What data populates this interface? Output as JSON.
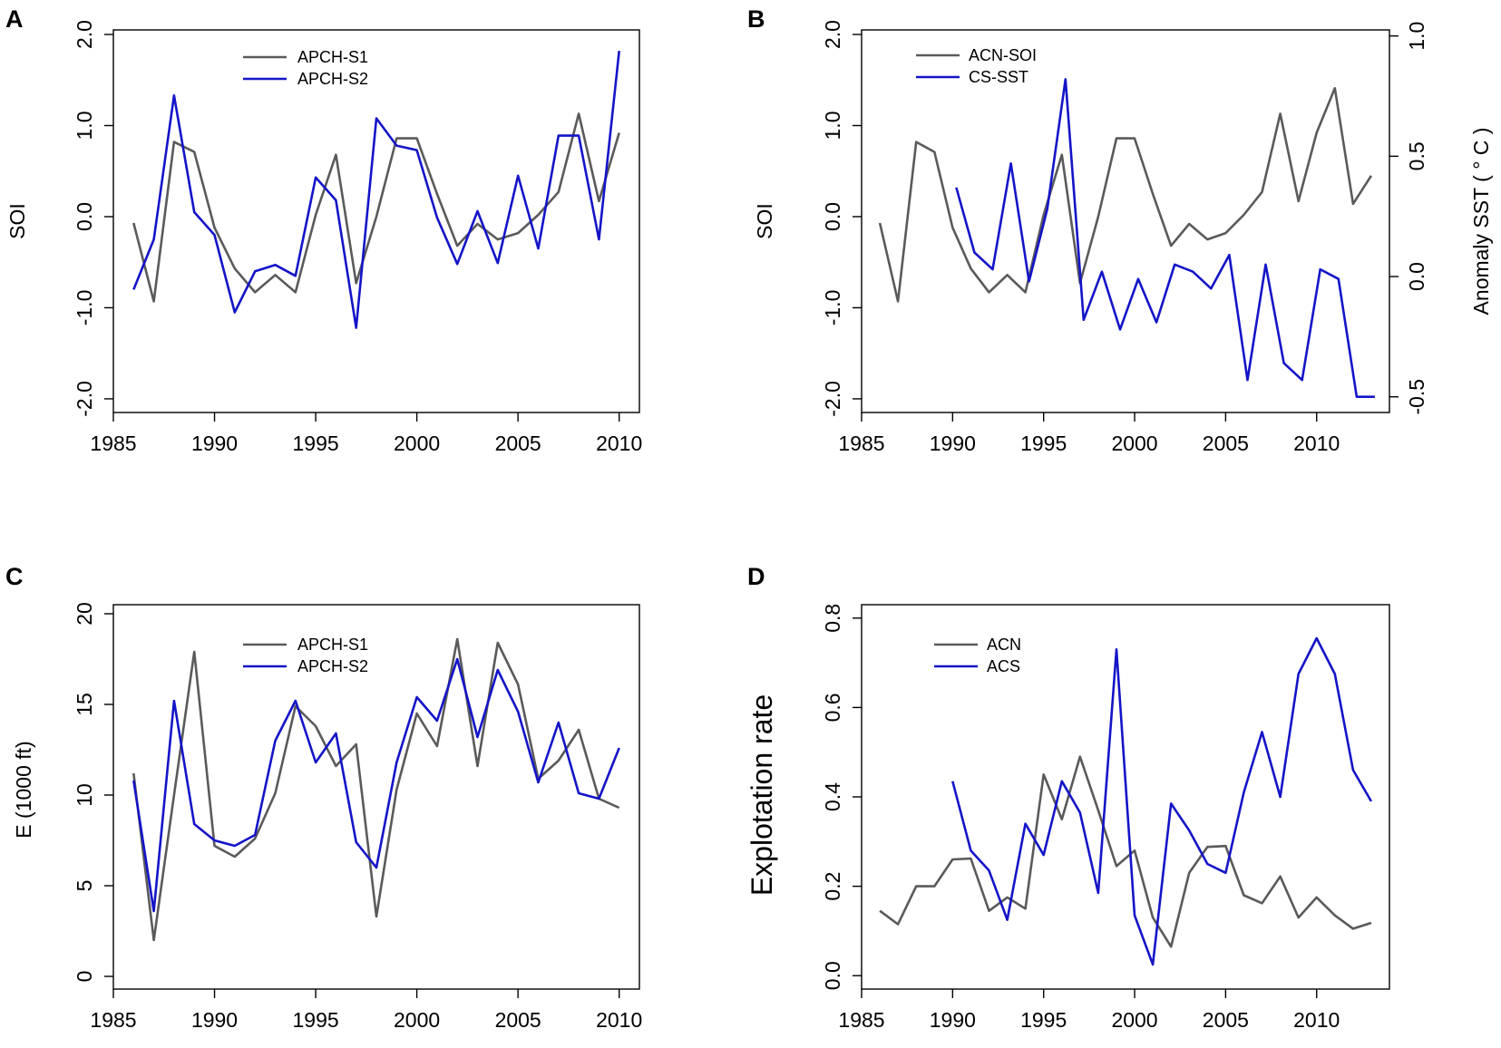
{
  "colors": {
    "gray": "#5a5a5a",
    "blue": "#1414c8",
    "axis": "#000000"
  },
  "chart_data": [
    {
      "panel": "A",
      "type": "line",
      "ylabel": "SOI",
      "xlim": [
        1985,
        2011
      ],
      "xticks": [
        1985,
        1990,
        1995,
        2000,
        2005,
        2010
      ],
      "ylim": [
        -2.15,
        2.05
      ],
      "yticks": [
        -2.0,
        -1.0,
        0.0,
        1.0,
        2.0
      ],
      "ytick_labels": [
        "-2.0",
        "-1.0",
        "0.0",
        "1.0",
        "2.0"
      ],
      "legend": [
        "APCH-S1",
        "APCH-S2"
      ],
      "series": [
        {
          "name": "APCH-S1",
          "color": "gray",
          "x": [
            1986,
            1987,
            1988,
            1989,
            1990,
            1991,
            1992,
            1993,
            1994,
            1995,
            1996,
            1997,
            1998,
            1999,
            2000,
            2001,
            2002,
            2003,
            2004,
            2005,
            2006,
            2007,
            2008,
            2009,
            2010
          ],
          "values": [
            -0.07,
            -0.93,
            0.82,
            0.71,
            -0.12,
            -0.57,
            -0.83,
            -0.64,
            -0.83,
            0.02,
            0.68,
            -0.73,
            0.0,
            0.86,
            0.86,
            0.25,
            -0.32,
            -0.08,
            -0.25,
            -0.18,
            0.02,
            0.27,
            1.13,
            0.17,
            0.92
          ]
        },
        {
          "name": "APCH-S2",
          "color": "blue",
          "x": [
            1986,
            1987,
            1988,
            1989,
            1990,
            1991,
            1992,
            1993,
            1994,
            1995,
            1996,
            1997,
            1998,
            1999,
            2000,
            2001,
            2002,
            2003,
            2004,
            2005,
            2006,
            2007,
            2008,
            2009,
            2010
          ],
          "values": [
            -0.8,
            -0.25,
            1.33,
            0.05,
            -0.2,
            -1.05,
            -0.6,
            -0.53,
            -0.65,
            0.43,
            0.18,
            -1.22,
            1.08,
            0.78,
            0.73,
            -0.01,
            -0.52,
            0.06,
            -0.51,
            0.45,
            -0.35,
            0.89,
            0.89,
            -0.25,
            1.82
          ]
        }
      ]
    },
    {
      "panel": "B",
      "type": "line",
      "ylabel": "SOI",
      "y2label": "Anomaly SST ( ° C )",
      "xlim": [
        1985,
        2014
      ],
      "xticks": [
        1985,
        1990,
        1995,
        2000,
        2005,
        2010
      ],
      "ylim": [
        -2.15,
        2.05
      ],
      "yticks": [
        -2.0,
        -1.0,
        0.0,
        1.0,
        2.0
      ],
      "ytick_labels": [
        "-2.0",
        "-1.0",
        "0.0",
        "1.0",
        "2.0"
      ],
      "y2lim": [
        -0.565,
        1.025
      ],
      "y2ticks": [
        -0.5,
        0.0,
        0.5,
        1.0
      ],
      "y2tick_labels": [
        "-0.5",
        "0.0",
        "0.5",
        "1.0"
      ],
      "legend": [
        "ACN-SOI",
        "CS-SST"
      ],
      "series": [
        {
          "name": "ACN-SOI",
          "color": "gray",
          "axis": "left",
          "x": [
            1986,
            1987,
            1988,
            1989,
            1990,
            1991,
            1992,
            1993,
            1994,
            1995,
            1996,
            1997,
            1998,
            1999,
            2000,
            2001,
            2002,
            2003,
            2004,
            2005,
            2006,
            2007,
            2008,
            2009,
            2010,
            2011,
            2012,
            2013
          ],
          "values": [
            -0.07,
            -0.93,
            0.82,
            0.71,
            -0.12,
            -0.57,
            -0.83,
            -0.64,
            -0.83,
            0.02,
            0.68,
            -0.73,
            0.0,
            0.86,
            0.86,
            0.25,
            -0.32,
            -0.08,
            -0.25,
            -0.18,
            0.02,
            0.27,
            1.13,
            0.17,
            0.92,
            1.41,
            0.14,
            0.45
          ]
        },
        {
          "name": "CS-SST",
          "color": "blue",
          "axis": "right",
          "x": [
            1990.2,
            1991.2,
            1992.2,
            1993.2,
            1994.2,
            1995.2,
            1996.2,
            1997.2,
            1998.2,
            1999.2,
            2000.2,
            2001.2,
            2002.2,
            2003.2,
            2004.2,
            2005.2,
            2006.2,
            2007.2,
            2008.2,
            2009.2,
            2010.2,
            2011.2,
            2012.2,
            2013.2
          ],
          "values": [
            0.37,
            0.1,
            0.03,
            0.47,
            -0.02,
            0.28,
            0.82,
            -0.18,
            0.02,
            -0.22,
            -0.01,
            -0.19,
            0.05,
            0.02,
            -0.05,
            0.09,
            -0.43,
            0.05,
            -0.36,
            -0.43,
            0.03,
            -0.01,
            -0.5,
            -0.5
          ]
        }
      ]
    },
    {
      "panel": "C",
      "type": "line",
      "ylabel": "E (1000 ft)",
      "xlim": [
        1985,
        2011
      ],
      "xticks": [
        1985,
        1990,
        1995,
        2000,
        2005,
        2010
      ],
      "ylim": [
        -0.7,
        20.5
      ],
      "yticks": [
        0,
        5,
        10,
        15,
        20
      ],
      "ytick_labels": [
        "0",
        "5",
        "10",
        "15",
        "20"
      ],
      "legend": [
        "APCH-S1",
        "APCH-S2"
      ],
      "series": [
        {
          "name": "APCH-S1",
          "color": "gray",
          "x": [
            1986,
            1987,
            1988,
            1989,
            1990,
            1991,
            1992,
            1993,
            1994,
            1995,
            1996,
            1997,
            1998,
            1999,
            2000,
            2001,
            2002,
            2003,
            2004,
            2005,
            2006,
            2007,
            2008,
            2009,
            2010
          ],
          "values": [
            11.2,
            2.0,
            10.0,
            17.9,
            7.2,
            6.6,
            7.6,
            10.1,
            14.9,
            13.8,
            11.6,
            12.8,
            3.3,
            10.3,
            14.5,
            12.7,
            18.6,
            11.6,
            18.4,
            16.1,
            10.9,
            11.9,
            13.6,
            9.8,
            9.3
          ]
        },
        {
          "name": "APCH-S2",
          "color": "blue",
          "x": [
            1986,
            1987,
            1988,
            1989,
            1990,
            1991,
            1992,
            1993,
            1994,
            1995,
            1996,
            1997,
            1998,
            1999,
            2000,
            2001,
            2002,
            2003,
            2004,
            2005,
            2006,
            2007,
            2008,
            2009,
            2010
          ],
          "values": [
            10.8,
            3.6,
            15.2,
            8.4,
            7.5,
            7.2,
            7.8,
            13.0,
            15.2,
            11.8,
            13.4,
            7.4,
            6.0,
            11.8,
            15.4,
            14.1,
            17.5,
            13.2,
            16.9,
            14.6,
            10.7,
            14.0,
            10.1,
            9.8,
            12.6
          ]
        }
      ]
    },
    {
      "panel": "D",
      "type": "line",
      "ylabel": "Explotation rate",
      "xlim": [
        1985,
        2014
      ],
      "xticks": [
        1985,
        1990,
        1995,
        2000,
        2005,
        2010
      ],
      "ylim": [
        -0.03,
        0.83
      ],
      "yticks": [
        0.0,
        0.2,
        0.4,
        0.6,
        0.8
      ],
      "ytick_labels": [
        "0.0",
        "0.2",
        "0.4",
        "0.6",
        "0.8"
      ],
      "legend": [
        "ACN",
        "ACS"
      ],
      "series": [
        {
          "name": "ACN",
          "color": "gray",
          "x": [
            1986,
            1987,
            1988,
            1989,
            1990,
            1991,
            1992,
            1993,
            1994,
            1995,
            1996,
            1997,
            1998,
            1999,
            2000,
            2001,
            2002,
            2003,
            2004,
            2005,
            2006,
            2007,
            2008,
            2009,
            2010,
            2011,
            2012,
            2013
          ],
          "values": [
            0.145,
            0.115,
            0.2,
            0.2,
            0.26,
            0.262,
            0.145,
            0.175,
            0.15,
            0.45,
            0.35,
            0.49,
            0.37,
            0.245,
            0.28,
            0.13,
            0.065,
            0.23,
            0.288,
            0.29,
            0.18,
            0.162,
            0.222,
            0.13,
            0.175,
            0.135,
            0.105,
            0.118
          ]
        },
        {
          "name": "ACS",
          "color": "blue",
          "x": [
            1990,
            1991,
            1992,
            1993,
            1994,
            1995,
            1996,
            1997,
            1998,
            1999,
            2000,
            2001,
            2002,
            2003,
            2004,
            2005,
            2006,
            2007,
            2008,
            2009,
            2010,
            2011,
            2012,
            2013
          ],
          "values": [
            0.435,
            0.28,
            0.235,
            0.125,
            0.34,
            0.27,
            0.435,
            0.365,
            0.185,
            0.73,
            0.135,
            0.025,
            0.385,
            0.325,
            0.25,
            0.23,
            0.41,
            0.545,
            0.4,
            0.675,
            0.755,
            0.675,
            0.46,
            0.39
          ]
        }
      ]
    }
  ]
}
